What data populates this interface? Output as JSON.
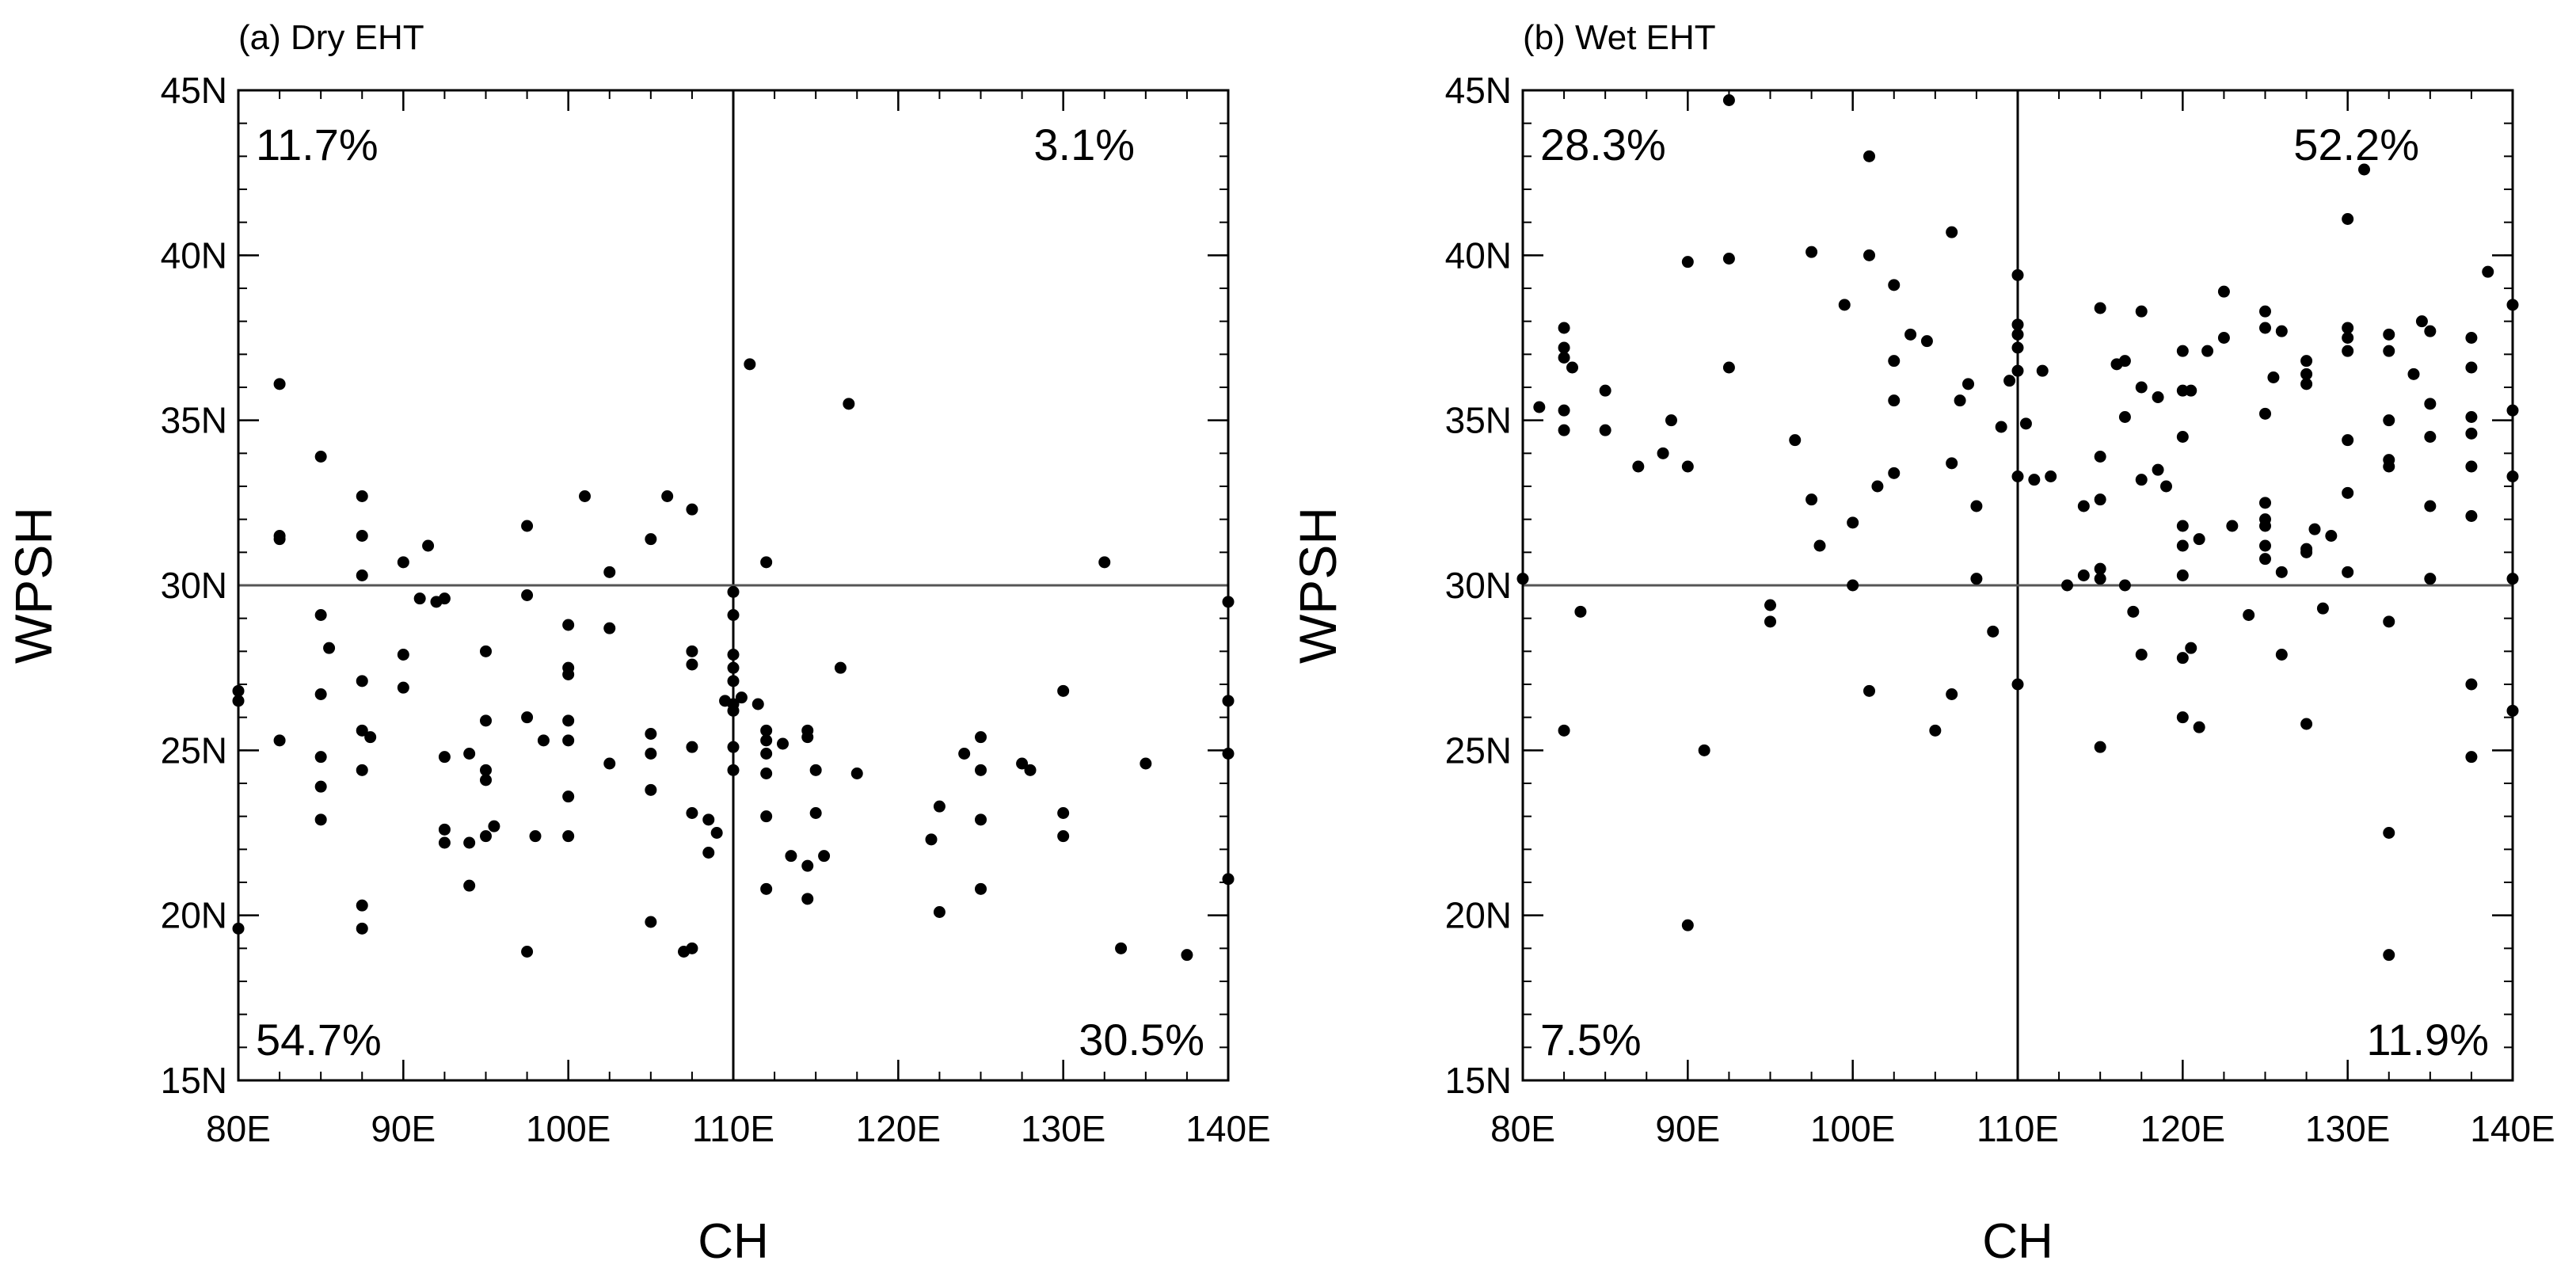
{
  "chart_data": [
    {
      "type": "scatter",
      "title": "(a) Dry EHT",
      "xlabel": "CH",
      "ylabel": "WPSH",
      "xlim": [
        80,
        140
      ],
      "ylim": [
        15,
        45
      ],
      "x_ticks": [
        "80E",
        "90E",
        "100E",
        "110E",
        "120E",
        "130E",
        "140E"
      ],
      "y_ticks": [
        "15N",
        "20N",
        "25N",
        "30N",
        "35N",
        "40N",
        "45N"
      ],
      "reference_lines": {
        "x": 110,
        "y": 30
      },
      "quadrant_labels": {
        "top_left": "11.7%",
        "top_right": "3.1%",
        "bottom_left": "54.7%",
        "bottom_right": "30.5%"
      },
      "marker_color": "#000000",
      "points": [
        [
          80,
          26.8
        ],
        [
          80,
          26.5
        ],
        [
          80,
          19.6
        ],
        [
          82.5,
          36.1
        ],
        [
          82.5,
          31.5
        ],
        [
          82.5,
          31.4
        ],
        [
          82.5,
          25.3
        ],
        [
          85,
          33.9
        ],
        [
          85,
          29.1
        ],
        [
          85,
          26.7
        ],
        [
          85,
          24.8
        ],
        [
          85,
          23.9
        ],
        [
          85,
          22.9
        ],
        [
          85.5,
          28.1
        ],
        [
          87.5,
          32.7
        ],
        [
          87.5,
          31.5
        ],
        [
          87.5,
          30.3
        ],
        [
          87.5,
          27.1
        ],
        [
          87.5,
          25.6
        ],
        [
          87.5,
          24.4
        ],
        [
          87.5,
          20.3
        ],
        [
          87.5,
          19.6
        ],
        [
          88,
          25.4
        ],
        [
          90,
          30.7
        ],
        [
          90,
          27.9
        ],
        [
          90,
          26.9
        ],
        [
          91,
          29.6
        ],
        [
          91.5,
          31.2
        ],
        [
          92,
          29.5
        ],
        [
          92.5,
          29.6
        ],
        [
          92.5,
          24.8
        ],
        [
          92.5,
          22.6
        ],
        [
          92.5,
          22.2
        ],
        [
          94,
          24.9
        ],
        [
          94,
          22.2
        ],
        [
          94,
          20.9
        ],
        [
          95,
          28.0
        ],
        [
          95,
          25.9
        ],
        [
          95,
          24.4
        ],
        [
          95,
          24.1
        ],
        [
          95,
          22.4
        ],
        [
          95.5,
          22.7
        ],
        [
          97.5,
          31.8
        ],
        [
          97.5,
          29.7
        ],
        [
          97.5,
          26.0
        ],
        [
          97.5,
          18.9
        ],
        [
          98,
          22.4
        ],
        [
          98.5,
          25.3
        ],
        [
          100,
          28.8
        ],
        [
          100,
          27.5
        ],
        [
          100,
          27.3
        ],
        [
          100,
          25.9
        ],
        [
          100,
          25.3
        ],
        [
          100,
          23.6
        ],
        [
          100,
          22.4
        ],
        [
          101,
          32.7
        ],
        [
          102.5,
          30.4
        ],
        [
          102.5,
          28.7
        ],
        [
          102.5,
          24.6
        ],
        [
          105,
          31.4
        ],
        [
          105,
          25.5
        ],
        [
          105,
          24.9
        ],
        [
          105,
          23.8
        ],
        [
          105,
          19.8
        ],
        [
          106,
          32.7
        ],
        [
          107,
          18.9
        ],
        [
          107.5,
          19.0
        ],
        [
          107.5,
          32.3
        ],
        [
          107.5,
          28.0
        ],
        [
          107.5,
          27.6
        ],
        [
          107.5,
          25.1
        ],
        [
          107.5,
          23.1
        ],
        [
          108.5,
          22.9
        ],
        [
          108.5,
          21.9
        ],
        [
          109,
          22.5
        ],
        [
          109.5,
          26.5
        ],
        [
          110,
          29.8
        ],
        [
          110,
          29.1
        ],
        [
          110,
          27.9
        ],
        [
          110,
          27.5
        ],
        [
          110,
          27.1
        ],
        [
          110,
          26.4
        ],
        [
          110,
          26.2
        ],
        [
          110,
          25.1
        ],
        [
          110,
          24.4
        ],
        [
          110.5,
          26.6
        ],
        [
          111,
          36.7
        ],
        [
          111.5,
          26.4
        ],
        [
          112,
          30.7
        ],
        [
          112,
          25.6
        ],
        [
          112,
          25.3
        ],
        [
          112,
          24.9
        ],
        [
          112,
          24.3
        ],
        [
          112,
          23.0
        ],
        [
          112,
          20.8
        ],
        [
          113,
          25.2
        ],
        [
          113.5,
          21.8
        ],
        [
          114.5,
          25.6
        ],
        [
          114.5,
          25.4
        ],
        [
          114.5,
          21.5
        ],
        [
          114.5,
          20.5
        ],
        [
          115,
          24.4
        ],
        [
          115,
          23.1
        ],
        [
          115.5,
          21.8
        ],
        [
          116.5,
          27.5
        ],
        [
          117,
          35.5
        ],
        [
          117.5,
          24.3
        ],
        [
          122,
          22.3
        ],
        [
          122.5,
          23.3
        ],
        [
          122.5,
          20.1
        ],
        [
          124,
          24.9
        ],
        [
          125,
          25.4
        ],
        [
          125,
          24.4
        ],
        [
          125,
          22.9
        ],
        [
          125,
          20.8
        ],
        [
          127.5,
          24.6
        ],
        [
          128,
          24.4
        ],
        [
          130,
          26.8
        ],
        [
          130,
          23.1
        ],
        [
          130,
          22.4
        ],
        [
          132.5,
          30.7
        ],
        [
          133.5,
          19.0
        ],
        [
          135,
          24.6
        ],
        [
          137.5,
          18.8
        ],
        [
          140,
          29.5
        ],
        [
          140,
          26.5
        ],
        [
          140,
          24.9
        ],
        [
          140,
          21.1
        ]
      ]
    },
    {
      "type": "scatter",
      "title": "(b) Wet EHT",
      "xlabel": "CH",
      "ylabel": "WPSH",
      "xlim": [
        80,
        140
      ],
      "ylim": [
        15,
        45
      ],
      "x_ticks": [
        "80E",
        "90E",
        "100E",
        "110E",
        "120E",
        "130E",
        "140E"
      ],
      "y_ticks": [
        "15N",
        "20N",
        "25N",
        "30N",
        "35N",
        "40N",
        "45N"
      ],
      "reference_lines": {
        "x": 110,
        "y": 30
      },
      "quadrant_labels": {
        "top_left": "28.3%",
        "top_right": "52.2%",
        "bottom_left": "7.5%",
        "bottom_right": "11.9%"
      },
      "marker_color": "#000000",
      "points": [
        [
          80,
          30.2
        ],
        [
          81,
          35.4
        ],
        [
          82.5,
          37.8
        ],
        [
          82.5,
          37.2
        ],
        [
          82.5,
          36.9
        ],
        [
          82.5,
          35.3
        ],
        [
          82.5,
          34.7
        ],
        [
          82.5,
          25.6
        ],
        [
          83,
          36.6
        ],
        [
          83.5,
          29.2
        ],
        [
          85,
          35.9
        ],
        [
          85,
          34.7
        ],
        [
          87,
          33.6
        ],
        [
          88.5,
          34.0
        ],
        [
          89,
          35.0
        ],
        [
          90,
          39.8
        ],
        [
          90,
          33.6
        ],
        [
          90,
          19.7
        ],
        [
          91,
          25.0
        ],
        [
          92.5,
          44.7
        ],
        [
          92.5,
          39.9
        ],
        [
          92.5,
          36.6
        ],
        [
          95,
          29.4
        ],
        [
          95,
          28.9
        ],
        [
          96.5,
          34.4
        ],
        [
          97.5,
          40.1
        ],
        [
          97.5,
          32.6
        ],
        [
          98,
          31.2
        ],
        [
          99.5,
          38.5
        ],
        [
          100,
          31.9
        ],
        [
          100,
          30.0
        ],
        [
          101,
          26.8
        ],
        [
          101,
          43.0
        ],
        [
          101,
          40.0
        ],
        [
          101.5,
          33.0
        ],
        [
          102.5,
          39.1
        ],
        [
          102.5,
          36.8
        ],
        [
          102.5,
          35.6
        ],
        [
          102.5,
          33.4
        ],
        [
          103.5,
          37.6
        ],
        [
          104.5,
          37.4
        ],
        [
          105,
          25.6
        ],
        [
          106,
          40.7
        ],
        [
          106,
          33.7
        ],
        [
          106,
          26.7
        ],
        [
          106.5,
          35.6
        ],
        [
          107,
          36.1
        ],
        [
          107.5,
          32.4
        ],
        [
          107.5,
          30.2
        ],
        [
          108.5,
          28.6
        ],
        [
          109,
          34.8
        ],
        [
          109.5,
          36.2
        ],
        [
          110,
          39.4
        ],
        [
          110,
          37.9
        ],
        [
          110,
          37.6
        ],
        [
          110,
          37.2
        ],
        [
          110,
          36.5
        ],
        [
          110,
          33.3
        ],
        [
          110,
          27.0
        ],
        [
          110.5,
          34.9
        ],
        [
          111,
          33.2
        ],
        [
          111.5,
          36.5
        ],
        [
          112,
          33.3
        ],
        [
          113,
          30.0
        ],
        [
          114,
          30.3
        ],
        [
          114,
          32.4
        ],
        [
          115,
          38.4
        ],
        [
          115,
          33.9
        ],
        [
          115,
          32.6
        ],
        [
          115,
          30.5
        ],
        [
          115,
          30.2
        ],
        [
          115,
          25.1
        ],
        [
          116,
          36.7
        ],
        [
          116.5,
          36.8
        ],
        [
          116.5,
          35.1
        ],
        [
          116.5,
          30.0
        ],
        [
          117,
          29.2
        ],
        [
          117.5,
          38.3
        ],
        [
          117.5,
          36.0
        ],
        [
          117.5,
          33.2
        ],
        [
          117.5,
          27.9
        ],
        [
          118.5,
          35.7
        ],
        [
          118.5,
          33.5
        ],
        [
          119,
          33.0
        ],
        [
          120,
          37.1
        ],
        [
          120,
          35.9
        ],
        [
          120,
          34.5
        ],
        [
          120,
          31.8
        ],
        [
          120,
          31.2
        ],
        [
          120,
          30.3
        ],
        [
          120,
          27.8
        ],
        [
          120,
          26.0
        ],
        [
          120.5,
          35.9
        ],
        [
          120.5,
          28.1
        ],
        [
          121,
          25.7
        ],
        [
          121,
          31.4
        ],
        [
          121.5,
          37.1
        ],
        [
          122.5,
          38.9
        ],
        [
          122.5,
          37.5
        ],
        [
          123,
          31.8
        ],
        [
          124,
          29.1
        ],
        [
          125,
          38.3
        ],
        [
          125,
          37.8
        ],
        [
          125,
          35.2
        ],
        [
          125,
          32.5
        ],
        [
          125,
          32.0
        ],
        [
          125,
          31.8
        ],
        [
          125,
          31.2
        ],
        [
          125,
          30.8
        ],
        [
          125.5,
          36.3
        ],
        [
          126,
          37.7
        ],
        [
          126,
          30.4
        ],
        [
          126,
          27.9
        ],
        [
          127.5,
          36.8
        ],
        [
          127.5,
          36.4
        ],
        [
          127.5,
          36.1
        ],
        [
          127.5,
          31.1
        ],
        [
          127.5,
          31.0
        ],
        [
          127.5,
          25.8
        ],
        [
          128,
          31.7
        ],
        [
          128.5,
          29.3
        ],
        [
          129,
          31.5
        ],
        [
          130,
          41.1
        ],
        [
          130,
          37.8
        ],
        [
          130,
          37.5
        ],
        [
          130,
          37.1
        ],
        [
          130,
          34.4
        ],
        [
          130,
          32.8
        ],
        [
          130,
          30.4
        ],
        [
          131,
          42.6
        ],
        [
          132.5,
          37.6
        ],
        [
          132.5,
          37.1
        ],
        [
          132.5,
          35.0
        ],
        [
          132.5,
          33.8
        ],
        [
          132.5,
          33.6
        ],
        [
          132.5,
          28.9
        ],
        [
          132.5,
          22.5
        ],
        [
          132.5,
          18.8
        ],
        [
          134,
          36.4
        ],
        [
          134.5,
          38.0
        ],
        [
          135,
          37.7
        ],
        [
          135,
          35.5
        ],
        [
          135,
          34.5
        ],
        [
          135,
          32.4
        ],
        [
          135,
          30.2
        ],
        [
          137.5,
          37.5
        ],
        [
          137.5,
          36.6
        ],
        [
          137.5,
          35.1
        ],
        [
          137.5,
          34.6
        ],
        [
          137.5,
          33.6
        ],
        [
          137.5,
          32.1
        ],
        [
          137.5,
          27.0
        ],
        [
          137.5,
          24.8
        ],
        [
          138.5,
          39.5
        ],
        [
          140,
          38.5
        ],
        [
          140,
          35.3
        ],
        [
          140,
          33.3
        ],
        [
          140,
          30.2
        ],
        [
          140,
          26.2
        ]
      ]
    }
  ]
}
